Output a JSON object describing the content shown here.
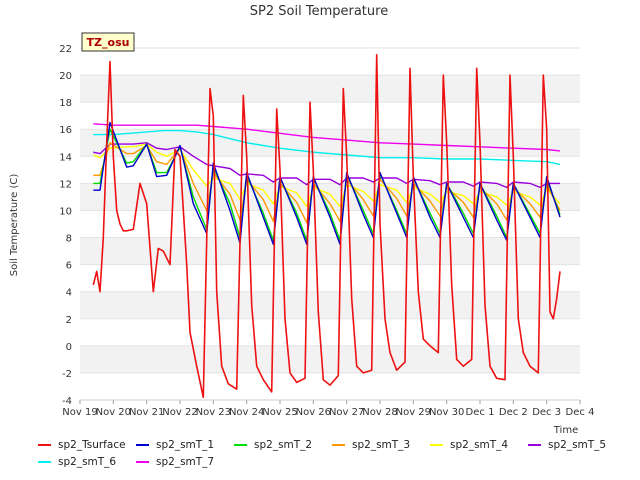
{
  "chart_data": {
    "type": "line",
    "title": "SP2 Soil Temperature",
    "xlabel": "Time",
    "ylabel": "Soil Temperature (C)",
    "station_label": "TZ_osu",
    "xlim": [
      0,
      15
    ],
    "ylim": [
      -4,
      22
    ],
    "x_ticks": [
      {
        "value": 0,
        "label": "Nov 19"
      },
      {
        "value": 1,
        "label": "Nov 20"
      },
      {
        "value": 2,
        "label": "Nov 21"
      },
      {
        "value": 3,
        "label": "Nov 22"
      },
      {
        "value": 4,
        "label": "Nov 23"
      },
      {
        "value": 5,
        "label": "Nov 24"
      },
      {
        "value": 6,
        "label": "Nov 25"
      },
      {
        "value": 7,
        "label": "Nov 26"
      },
      {
        "value": 8,
        "label": "Nov 27"
      },
      {
        "value": 9,
        "label": "Nov 28"
      },
      {
        "value": 10,
        "label": "Nov 29"
      },
      {
        "value": 11,
        "label": "Nov 30"
      },
      {
        "value": 12,
        "label": "Dec 1"
      },
      {
        "value": 13,
        "label": "Dec 2"
      },
      {
        "value": 14,
        "label": "Dec 3"
      },
      {
        "value": 15,
        "label": "Dec 4"
      }
    ],
    "y_ticks": [
      -4,
      -2,
      0,
      2,
      4,
      6,
      8,
      10,
      12,
      14,
      16,
      18,
      20,
      22
    ],
    "series": [
      {
        "name": "sp2_Tsurface",
        "color": "#ee1111",
        "x": [
          0.4,
          0.5,
          0.6,
          0.7,
          0.8,
          0.9,
          1.0,
          1.1,
          1.2,
          1.3,
          1.4,
          1.6,
          1.8,
          2.0,
          2.2,
          2.35,
          2.5,
          2.7,
          2.85,
          3.0,
          3.2,
          3.3,
          3.5,
          3.7,
          3.9,
          4.0,
          4.1,
          4.25,
          4.45,
          4.7,
          4.9,
          5.0,
          5.15,
          5.3,
          5.5,
          5.75,
          5.9,
          6.0,
          6.15,
          6.3,
          6.5,
          6.75,
          6.9,
          7.0,
          7.15,
          7.3,
          7.5,
          7.75,
          7.9,
          8.0,
          8.15,
          8.3,
          8.5,
          8.75,
          8.9,
          9.0,
          9.15,
          9.3,
          9.5,
          9.75,
          9.9,
          10.0,
          10.15,
          10.3,
          10.5,
          10.75,
          10.9,
          11.0,
          11.15,
          11.3,
          11.5,
          11.75,
          11.9,
          12.0,
          12.15,
          12.3,
          12.5,
          12.75,
          12.9,
          13.0,
          13.15,
          13.3,
          13.5,
          13.75,
          13.9,
          14.0,
          14.1,
          14.2,
          14.3,
          14.4
        ],
        "y": [
          4.5,
          5.5,
          4.0,
          8.0,
          15.0,
          21.0,
          14.0,
          10.0,
          9.0,
          8.5,
          8.5,
          8.6,
          12.0,
          10.5,
          4.0,
          7.2,
          7.0,
          6.0,
          14.5,
          14.0,
          6.0,
          1.0,
          -1.5,
          -3.8,
          19.0,
          17.0,
          4.0,
          -1.5,
          -2.8,
          -3.2,
          18.5,
          14.0,
          3.0,
          -1.5,
          -2.5,
          -3.4,
          17.5,
          13.0,
          2.0,
          -2.0,
          -2.7,
          -2.4,
          18.0,
          13.0,
          2.5,
          -2.5,
          -2.9,
          -2.2,
          19.0,
          14.0,
          3.5,
          -1.5,
          -2.0,
          -1.8,
          21.5,
          9.0,
          2.0,
          -0.5,
          -1.8,
          -1.2,
          20.5,
          12.5,
          4.0,
          0.5,
          0.0,
          -0.5,
          20.0,
          15.0,
          4.5,
          -1.0,
          -1.5,
          -1.0,
          20.5,
          15.0,
          3.0,
          -1.5,
          -2.4,
          -2.5,
          20.0,
          14.0,
          2.0,
          -0.5,
          -1.5,
          -2.0,
          20.0,
          16.0,
          2.5,
          2.0,
          3.5,
          5.5
        ]
      },
      {
        "name": "sp2_smT_1",
        "color": "#0000cc",
        "x": [
          0.4,
          0.6,
          0.9,
          1.4,
          1.6,
          2.0,
          2.3,
          2.6,
          3.0,
          3.4,
          3.8,
          4.0,
          4.5,
          4.8,
          5.0,
          5.5,
          5.8,
          6.0,
          6.5,
          6.8,
          7.0,
          7.5,
          7.8,
          8.0,
          8.5,
          8.8,
          9.0,
          9.5,
          9.8,
          10.0,
          10.5,
          10.8,
          11.0,
          11.5,
          11.8,
          12.0,
          12.5,
          12.8,
          13.0,
          13.5,
          13.8,
          14.0,
          14.4
        ],
        "y": [
          11.5,
          11.5,
          16.5,
          13.2,
          13.3,
          14.9,
          12.5,
          12.6,
          14.8,
          10.5,
          8.3,
          13.5,
          10.0,
          7.6,
          12.8,
          9.5,
          7.5,
          12.5,
          9.5,
          7.5,
          12.5,
          9.5,
          7.5,
          12.8,
          9.7,
          8.0,
          12.8,
          9.8,
          8.0,
          12.5,
          9.5,
          8.0,
          12.0,
          9.5,
          8.0,
          12.0,
          9.3,
          7.8,
          12.0,
          9.5,
          8.0,
          12.5,
          9.5
        ]
      },
      {
        "name": "sp2_smT_2",
        "color": "#00dd00",
        "x": [
          0.4,
          0.6,
          0.9,
          1.4,
          1.6,
          2.0,
          2.3,
          2.6,
          3.0,
          3.4,
          3.8,
          4.0,
          4.5,
          4.8,
          5.0,
          5.5,
          5.8,
          6.0,
          6.5,
          6.8,
          7.0,
          7.5,
          7.8,
          8.0,
          8.5,
          8.8,
          9.0,
          9.5,
          9.8,
          10.0,
          10.5,
          10.8,
          11.0,
          11.5,
          11.8,
          12.0,
          12.5,
          12.8,
          13.0,
          13.5,
          13.8,
          14.0,
          14.4
        ],
        "y": [
          12.0,
          12.0,
          16.0,
          13.5,
          13.6,
          14.9,
          12.8,
          12.8,
          14.7,
          11.0,
          8.6,
          13.2,
          10.5,
          8.0,
          12.6,
          9.8,
          7.8,
          12.4,
          9.8,
          7.8,
          12.4,
          9.8,
          7.8,
          12.7,
          10.0,
          8.3,
          12.7,
          10.0,
          8.3,
          12.4,
          9.8,
          8.3,
          12.0,
          9.8,
          8.3,
          12.0,
          9.6,
          8.0,
          12.0,
          9.7,
          8.3,
          12.3,
          9.7
        ]
      },
      {
        "name": "sp2_smT_3",
        "color": "#ff9900",
        "x": [
          0.4,
          0.6,
          0.9,
          1.4,
          1.6,
          2.0,
          2.3,
          2.6,
          3.0,
          3.4,
          3.8,
          4.0,
          4.5,
          4.8,
          5.0,
          5.5,
          5.8,
          6.0,
          6.5,
          6.8,
          7.0,
          7.5,
          7.8,
          8.0,
          8.5,
          8.8,
          9.0,
          9.5,
          9.8,
          10.0,
          10.5,
          10.8,
          11.0,
          11.5,
          11.8,
          12.0,
          12.5,
          12.8,
          13.0,
          13.5,
          13.8,
          14.0,
          14.4
        ],
        "y": [
          12.6,
          12.6,
          15.0,
          14.2,
          14.2,
          14.8,
          13.6,
          13.4,
          14.6,
          12.0,
          10.0,
          12.8,
          11.2,
          9.3,
          12.3,
          10.8,
          9.2,
          12.0,
          10.6,
          9.1,
          12.0,
          10.5,
          9.2,
          12.3,
          10.8,
          9.6,
          12.3,
          10.9,
          9.6,
          12.0,
          10.7,
          9.6,
          11.7,
          10.6,
          9.5,
          11.7,
          10.5,
          9.3,
          11.7,
          10.5,
          9.5,
          11.9,
          10.0
        ]
      },
      {
        "name": "sp2_smT_4",
        "color": "#ffff00",
        "x": [
          0.4,
          0.6,
          0.9,
          1.4,
          1.6,
          2.0,
          2.3,
          2.6,
          3.0,
          3.4,
          3.8,
          4.0,
          4.5,
          4.8,
          5.0,
          5.5,
          5.8,
          6.0,
          6.5,
          6.8,
          7.0,
          7.5,
          7.8,
          8.0,
          8.5,
          8.8,
          9.0,
          9.5,
          9.8,
          10.0,
          10.5,
          10.8,
          11.0,
          11.5,
          11.8,
          12.0,
          12.5,
          12.8,
          13.0,
          13.5,
          13.8,
          14.0,
          14.4
        ],
        "y": [
          14.1,
          13.9,
          14.6,
          14.7,
          14.7,
          14.9,
          14.3,
          14.0,
          14.5,
          13.0,
          11.8,
          12.4,
          12.0,
          10.8,
          12.0,
          11.5,
          10.5,
          11.8,
          11.3,
          10.3,
          11.7,
          11.2,
          10.3,
          11.9,
          11.4,
          10.7,
          11.9,
          11.5,
          10.6,
          11.7,
          11.2,
          10.6,
          11.4,
          11.1,
          10.5,
          11.4,
          11.0,
          10.4,
          11.4,
          11.0,
          10.4,
          11.6,
          10.5
        ]
      },
      {
        "name": "sp2_smT_5",
        "color": "#9900dd",
        "x": [
          0.4,
          0.6,
          0.9,
          1.4,
          1.6,
          2.0,
          2.3,
          2.6,
          3.0,
          3.4,
          3.8,
          4.0,
          4.5,
          4.8,
          5.0,
          5.5,
          5.8,
          6.0,
          6.5,
          6.8,
          7.0,
          7.5,
          7.8,
          8.0,
          8.5,
          8.8,
          9.0,
          9.5,
          9.8,
          10.0,
          10.5,
          10.8,
          11.0,
          11.5,
          11.8,
          12.0,
          12.5,
          12.8,
          13.0,
          13.5,
          13.8,
          14.0,
          14.4
        ],
        "y": [
          14.3,
          14.2,
          14.9,
          14.9,
          14.9,
          15.0,
          14.6,
          14.5,
          14.7,
          14.0,
          13.4,
          13.3,
          13.1,
          12.6,
          12.7,
          12.6,
          12.1,
          12.4,
          12.4,
          11.9,
          12.3,
          12.3,
          11.9,
          12.4,
          12.4,
          12.1,
          12.4,
          12.4,
          12.0,
          12.3,
          12.2,
          11.9,
          12.1,
          12.1,
          11.8,
          12.1,
          12.0,
          11.7,
          12.1,
          12.0,
          11.7,
          12.0,
          12.0
        ]
      },
      {
        "name": "sp2_smT_6",
        "color": "#00eeee",
        "x": [
          0.4,
          1.0,
          1.5,
          2.0,
          2.5,
          3.0,
          3.5,
          4.0,
          4.5,
          5.0,
          6.0,
          7.0,
          8.0,
          9.0,
          10.0,
          11.0,
          12.0,
          13.0,
          14.0,
          14.4
        ],
        "y": [
          15.6,
          15.6,
          15.7,
          15.8,
          15.9,
          15.9,
          15.8,
          15.6,
          15.3,
          15.0,
          14.6,
          14.3,
          14.1,
          13.9,
          13.9,
          13.8,
          13.8,
          13.7,
          13.6,
          13.4
        ]
      },
      {
        "name": "sp2_smT_7",
        "color": "#ee00ee",
        "x": [
          0.4,
          1.0,
          2.0,
          3.0,
          3.5,
          4.0,
          5.0,
          6.0,
          7.0,
          8.0,
          9.0,
          10.0,
          11.0,
          12.0,
          13.0,
          14.0,
          14.4
        ],
        "y": [
          16.4,
          16.3,
          16.3,
          16.3,
          16.3,
          16.2,
          16.0,
          15.7,
          15.4,
          15.2,
          15.0,
          14.9,
          14.8,
          14.7,
          14.6,
          14.5,
          14.4
        ]
      }
    ]
  }
}
